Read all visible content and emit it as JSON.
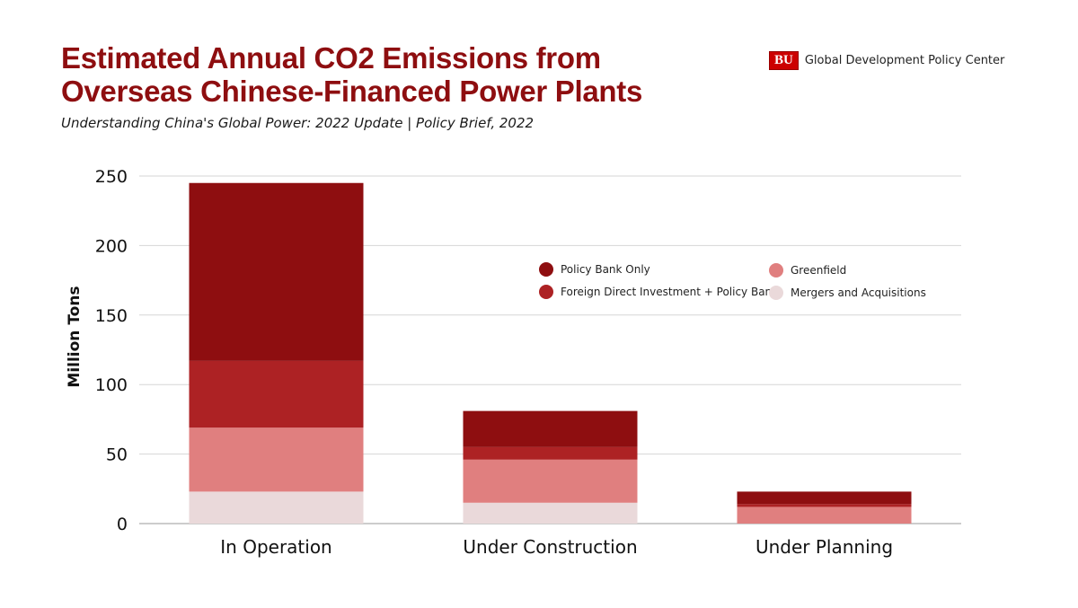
{
  "header": {
    "title_line1": "Estimated Annual CO2 Emissions from",
    "title_line2": "Overseas Chinese-Financed Power Plants",
    "subtitle": "Understanding China's Global Power: 2022 Update | Policy Brief, 2022"
  },
  "brand": {
    "logo_text": "BU",
    "name": "Global Development Policy Center",
    "color": "#cc0000"
  },
  "chart_data": {
    "type": "bar",
    "stacked": true,
    "categories": [
      "In Operation",
      "Under Construction",
      "Under Planning"
    ],
    "series": [
      {
        "name": "Mergers and Acquisitions",
        "color": "#ead9da",
        "values": [
          23,
          15,
          0
        ]
      },
      {
        "name": "Greenfield",
        "color": "#e07f7f",
        "values": [
          46,
          31,
          12
        ]
      },
      {
        "name": "Foreign Direct Investment + Policy Bank",
        "color": "#ad2224",
        "values": [
          48,
          9,
          2
        ]
      },
      {
        "name": "Policy Bank Only",
        "color": "#8e0e10",
        "values": [
          128,
          26,
          9
        ]
      }
    ],
    "legend_order": [
      "Policy Bank Only",
      "Foreign Direct Investment + Policy Bank",
      "Greenfield",
      "Mergers and Acquisitions"
    ],
    "legend_position": "top-right",
    "ylabel": "Million Tons",
    "xlabel": "",
    "ylim": [
      0,
      250
    ],
    "yticks": [
      0,
      50,
      100,
      150,
      200,
      250
    ],
    "grid": true
  }
}
